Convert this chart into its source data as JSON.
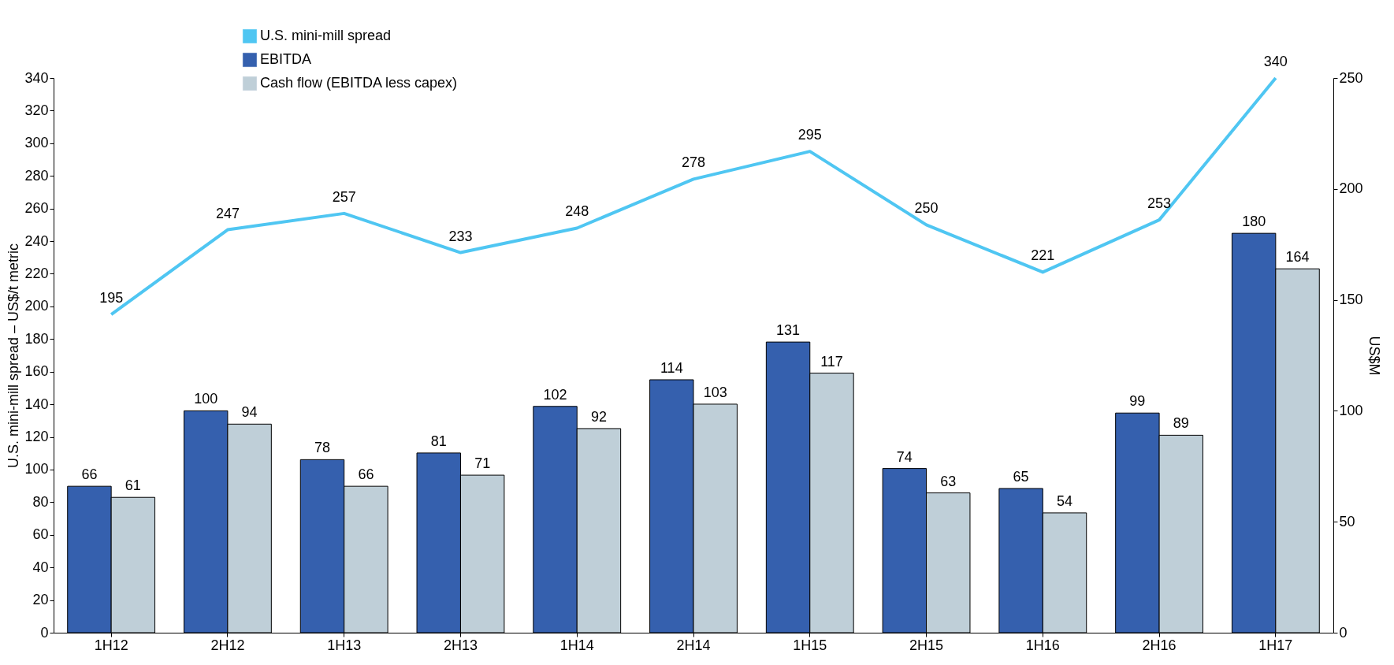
{
  "chart_data": {
    "type": "bar",
    "categories": [
      "1H12",
      "2H12",
      "1H13",
      "2H13",
      "1H14",
      "2H14",
      "1H15",
      "2H15",
      "1H16",
      "2H16",
      "1H17"
    ],
    "series": [
      {
        "name": "U.S. mini-mill spread",
        "type": "line",
        "axis": "y",
        "color": "#4fc6f2",
        "values": [
          195,
          247,
          257,
          233,
          248,
          278,
          295,
          250,
          221,
          253,
          340
        ]
      },
      {
        "name": "EBITDA",
        "axis": "y2",
        "color": "#3560ae",
        "values": [
          66,
          100,
          78,
          81,
          102,
          114,
          131,
          74,
          65,
          99,
          180
        ]
      },
      {
        "name": "Cash flow (EBITDA less capex)",
        "axis": "y2",
        "color": "#bfcfd8",
        "values": [
          61,
          94,
          66,
          71,
          92,
          103,
          117,
          63,
          54,
          89,
          164
        ]
      }
    ],
    "ylabel": "U.S. mini-mill spread – US$/t metric",
    "y2label": "US$M",
    "ylim": [
      0,
      340
    ],
    "yticks": [
      0,
      20,
      40,
      60,
      80,
      100,
      120,
      140,
      160,
      180,
      200,
      220,
      240,
      260,
      280,
      300,
      320,
      340
    ],
    "y2lim": [
      0,
      250
    ],
    "y2ticks": [
      0,
      50,
      100,
      150,
      200,
      250
    ],
    "data_labels": true,
    "legend": "top left",
    "grid": false
  }
}
